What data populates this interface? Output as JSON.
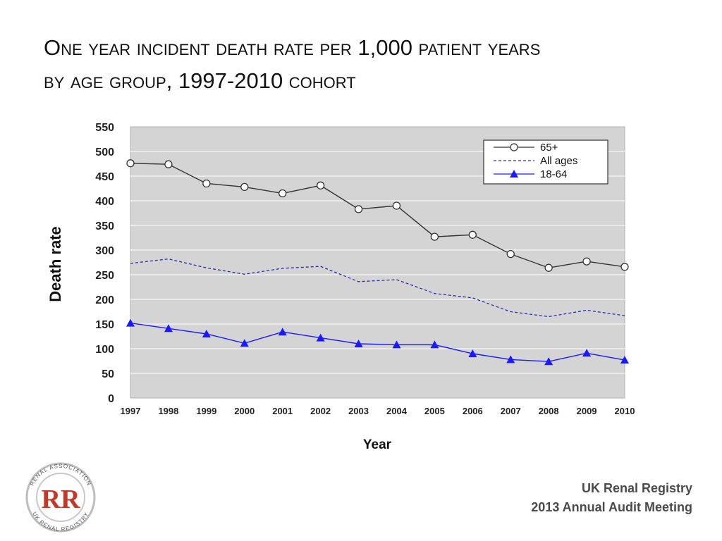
{
  "slide": {
    "title_line1": "One year incident death rate per 1,000 patient years",
    "title_line2": "by age group, 1997-2010 cohort",
    "footer_line1": "UK Renal Registry",
    "footer_line2": "2013 Annual Audit Meeting"
  },
  "logo": {
    "ring_text_top": "RENAL ASSOCIATION",
    "ring_text_bottom": "UK RENAL REGISTRY",
    "monogram": "RR",
    "colors": {
      "ring": "#c0c0c0",
      "monogram": "#c0392b"
    }
  },
  "chart_data": {
    "type": "line",
    "xlabel": "Year",
    "ylabel": "Death rate",
    "ylim": [
      0,
      550
    ],
    "yticks": [
      0,
      50,
      100,
      150,
      200,
      250,
      300,
      350,
      400,
      450,
      500,
      550
    ],
    "grid": true,
    "legend_position": "top-right",
    "categories": [
      "1997",
      "1998",
      "1999",
      "2000",
      "2001",
      "2002",
      "2003",
      "2004",
      "2005",
      "2006",
      "2007",
      "2008",
      "2009",
      "2010"
    ],
    "series": [
      {
        "name": "65+",
        "style": "solid",
        "marker": "open-circle",
        "color": "#333333",
        "values": [
          476,
          474,
          435,
          428,
          415,
          431,
          383,
          390,
          327,
          331,
          292,
          264,
          277,
          266
        ]
      },
      {
        "name": "All ages",
        "style": "dashed",
        "marker": "none",
        "color": "#2b2bb0",
        "values": [
          273,
          282,
          264,
          251,
          263,
          267,
          236,
          240,
          212,
          203,
          175,
          165,
          178,
          167
        ]
      },
      {
        "name": "18-64",
        "style": "solid",
        "marker": "filled-triangle",
        "color": "#1a1aff",
        "values": [
          152,
          141,
          130,
          111,
          134,
          122,
          110,
          108,
          108,
          90,
          78,
          74,
          91,
          77
        ]
      }
    ],
    "colors": {
      "plot_background": "#d4d4d4",
      "gridline": "#f2f2f2"
    }
  }
}
